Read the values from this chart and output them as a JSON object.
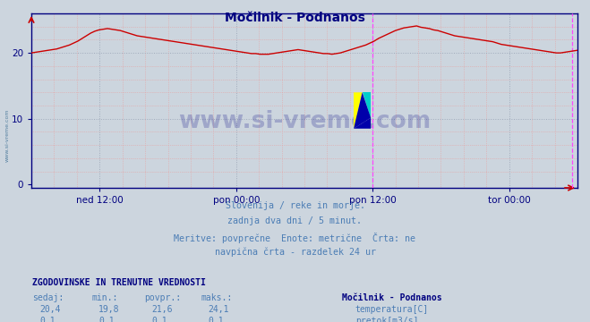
{
  "title": "Močilnik - Podnanos",
  "bg_color": "#ccd5de",
  "plot_bg_color": "#ccd5de",
  "line_color": "#cc0000",
  "axis_color": "#000080",
  "tick_label_color": "#000080",
  "title_color": "#000080",
  "text_color": "#4b7db5",
  "ylabel_ticks": [
    0,
    10,
    20
  ],
  "ylim": [
    -0.5,
    26
  ],
  "xlim": [
    0,
    576
  ],
  "x_tick_positions": [
    72,
    216,
    360,
    504
  ],
  "x_tick_labels": [
    "ned 12:00",
    "pon 00:00",
    "pon 12:00",
    "tor 00:00"
  ],
  "vline_positions": [
    360,
    570
  ],
  "vline_color": "#ff44ff",
  "subtitle_lines": [
    "Slovenija / reke in morje.",
    "zadnja dva dni / 5 minut.",
    "Meritve: povprečne  Enote: metrične  Črta: ne",
    "navpična črta - razdelek 24 ur"
  ],
  "table_header": "ZGODOVINSKE IN TRENUTNE VREDNOSTI",
  "table_col_headers": [
    "sedaj:",
    "min.:",
    "povpr.:",
    "maks.:"
  ],
  "table_row1_vals": [
    "20,4",
    "19,8",
    "21,6",
    "24,1"
  ],
  "table_row2_vals": [
    "0,1",
    "0,1",
    "0,1",
    "0,1"
  ],
  "legend_station": "Močilnik - Podnanos",
  "legend_items": [
    {
      "label": "temperatura[C]",
      "color": "#cc0000"
    },
    {
      "label": "pretok[m3/s]",
      "color": "#008000"
    }
  ],
  "watermark": "www.si-vreme.com",
  "watermark_color": "#000080",
  "temp_data_raw": [
    20.0,
    20.1,
    20.2,
    20.3,
    20.4,
    20.5,
    20.6,
    20.8,
    21.0,
    21.2,
    21.5,
    21.8,
    22.2,
    22.6,
    23.0,
    23.3,
    23.5,
    23.6,
    23.7,
    23.6,
    23.5,
    23.4,
    23.2,
    23.0,
    22.8,
    22.6,
    22.5,
    22.4,
    22.3,
    22.2,
    22.1,
    22.0,
    21.9,
    21.8,
    21.7,
    21.6,
    21.5,
    21.4,
    21.3,
    21.2,
    21.1,
    21.0,
    20.9,
    20.8,
    20.7,
    20.6,
    20.5,
    20.4,
    20.3,
    20.2,
    20.1,
    20.0,
    19.9,
    19.9,
    19.8,
    19.8,
    19.8,
    19.9,
    20.0,
    20.1,
    20.2,
    20.3,
    20.4,
    20.5,
    20.4,
    20.3,
    20.2,
    20.1,
    20.0,
    19.9,
    19.9,
    19.8,
    19.9,
    20.0,
    20.2,
    20.4,
    20.6,
    20.8,
    21.0,
    21.2,
    21.5,
    21.8,
    22.2,
    22.5,
    22.8,
    23.1,
    23.4,
    23.6,
    23.8,
    23.9,
    24.0,
    24.1,
    23.9,
    23.8,
    23.7,
    23.5,
    23.4,
    23.2,
    23.0,
    22.8,
    22.6,
    22.5,
    22.4,
    22.3,
    22.2,
    22.1,
    22.0,
    21.9,
    21.8,
    21.7,
    21.5,
    21.3,
    21.2,
    21.1,
    21.0,
    20.9,
    20.8,
    20.7,
    20.6,
    20.5,
    20.4,
    20.3,
    20.2,
    20.1,
    20.0,
    20.0,
    20.1,
    20.2,
    20.3,
    20.4
  ]
}
